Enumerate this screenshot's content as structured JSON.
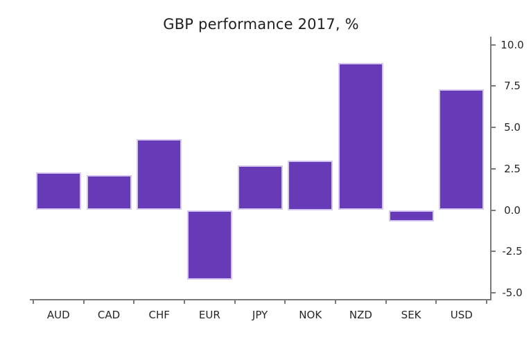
{
  "chart_data": {
    "type": "bar",
    "title": "GBP performance 2017, %",
    "categories": [
      "AUD",
      "CAD",
      "CHF",
      "EUR",
      "JPY",
      "NOK",
      "NZD",
      "SEK",
      "USD"
    ],
    "values": [
      2.3,
      2.1,
      4.3,
      -4.2,
      2.7,
      3.0,
      8.9,
      -0.7,
      7.3
    ],
    "xlabel": "",
    "ylabel": "",
    "ylim": [
      -5.0,
      10.0
    ],
    "ytick_values": [
      10.0,
      7.5,
      5.0,
      2.5,
      0.0,
      -2.5,
      -5.0
    ],
    "ytick_labels": [
      "10.0",
      "7.5",
      "5.0",
      "2.5",
      "0.0",
      "-2.5",
      "-5.0"
    ],
    "yaxis_side": "right",
    "grid": false,
    "legend": "none",
    "bar_color": "#673ab7",
    "bar_edge_color": "#d5c7f0",
    "axis_color": "#7a7a7a",
    "text_color": "#262626"
  }
}
